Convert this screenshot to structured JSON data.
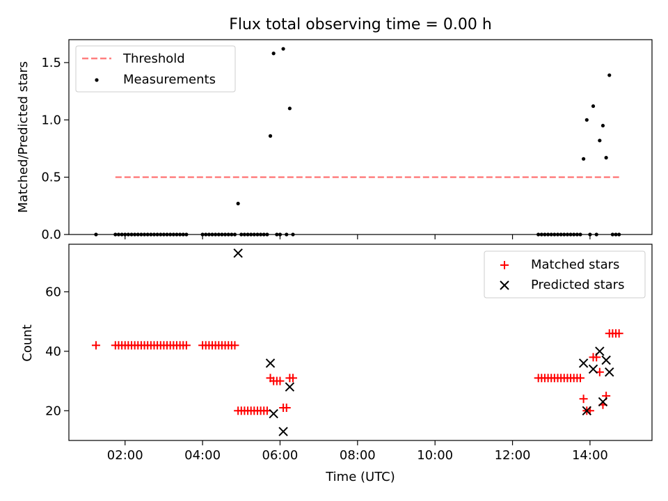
{
  "figure": {
    "title": "Flux total observing time = 0.00 h"
  },
  "chart_data": [
    {
      "type": "scatter",
      "ylabel": "Matched/Predicted stars",
      "xlim": [
        0.55,
        15.6
      ],
      "ylim": [
        0,
        1.7
      ],
      "yticks": [
        0.0,
        0.5,
        1.0,
        1.5
      ],
      "ytick_labels": [
        "0.0",
        "0.5",
        "1.0",
        "1.5"
      ],
      "xticks": [
        2,
        4,
        6,
        8,
        10,
        12,
        14
      ],
      "grid": false,
      "legend_placement": "top-left",
      "threshold": {
        "name": "Threshold",
        "value": 0.5,
        "x_range": [
          1.75,
          14.75
        ],
        "color": "#ff7f7f"
      },
      "series": [
        {
          "name": "Measurements",
          "color": "#000000",
          "x": [
            1.25,
            1.75,
            1.833,
            1.917,
            2.0,
            2.083,
            2.167,
            2.25,
            2.333,
            2.417,
            2.5,
            2.583,
            2.667,
            2.75,
            2.833,
            2.917,
            3.0,
            3.083,
            3.167,
            3.25,
            3.333,
            3.417,
            3.5,
            3.583,
            4.0,
            4.083,
            4.167,
            4.25,
            4.333,
            4.417,
            4.5,
            4.583,
            4.667,
            4.75,
            4.833,
            4.917,
            5.0,
            5.083,
            5.167,
            5.25,
            5.333,
            5.417,
            5.5,
            5.583,
            5.667,
            5.75,
            5.833,
            5.917,
            6.0,
            6.083,
            6.167,
            6.25,
            6.333,
            12.667,
            12.75,
            12.833,
            12.917,
            13.0,
            13.083,
            13.167,
            13.25,
            13.333,
            13.417,
            13.5,
            13.583,
            13.667,
            13.75,
            13.833,
            13.917,
            14.0,
            14.083,
            14.167,
            14.25,
            14.333,
            14.417,
            14.5,
            14.583,
            14.667,
            14.75
          ],
          "y": [
            0,
            0,
            0,
            0,
            0,
            0,
            0,
            0,
            0,
            0,
            0,
            0,
            0,
            0,
            0,
            0,
            0,
            0,
            0,
            0,
            0,
            0,
            0,
            0,
            0,
            0,
            0,
            0,
            0,
            0,
            0,
            0,
            0,
            0,
            0,
            0.27,
            0,
            0,
            0,
            0,
            0,
            0,
            0,
            0,
            0,
            0.86,
            1.58,
            0,
            0,
            1.62,
            0,
            1.1,
            0,
            0,
            0,
            0,
            0,
            0,
            0,
            0,
            0,
            0,
            0,
            0,
            0,
            0,
            0,
            0.66,
            1.0,
            0,
            1.12,
            0,
            0.82,
            0.95,
            0.67,
            1.39,
            0,
            0,
            0
          ]
        }
      ]
    },
    {
      "type": "scatter",
      "xlabel": "Time (UTC)",
      "ylabel": "Count",
      "xlim": [
        0.55,
        15.6
      ],
      "ylim": [
        10,
        76
      ],
      "yticks": [
        20,
        40,
        60
      ],
      "ytick_labels": [
        "20",
        "40",
        "60"
      ],
      "xticks": [
        2,
        4,
        6,
        8,
        10,
        12,
        14
      ],
      "xtick_labels": [
        "02:00",
        "04:00",
        "06:00",
        "08:00",
        "10:00",
        "12:00",
        "14:00"
      ],
      "grid": false,
      "legend_placement": "top-right",
      "series": [
        {
          "name": "Matched stars",
          "marker": "plus",
          "color": "#ff0000",
          "x": [
            1.25,
            1.75,
            1.833,
            1.917,
            2.0,
            2.083,
            2.167,
            2.25,
            2.333,
            2.417,
            2.5,
            2.583,
            2.667,
            2.75,
            2.833,
            2.917,
            3.0,
            3.083,
            3.167,
            3.25,
            3.333,
            3.417,
            3.5,
            3.583,
            4.0,
            4.083,
            4.167,
            4.25,
            4.333,
            4.417,
            4.5,
            4.583,
            4.667,
            4.75,
            4.833,
            4.917,
            5.0,
            5.083,
            5.167,
            5.25,
            5.333,
            5.417,
            5.5,
            5.583,
            5.667,
            5.75,
            5.833,
            5.917,
            6.0,
            6.083,
            6.167,
            6.25,
            6.333,
            12.667,
            12.75,
            12.833,
            12.917,
            13.0,
            13.083,
            13.167,
            13.25,
            13.333,
            13.417,
            13.5,
            13.583,
            13.667,
            13.75,
            13.833,
            13.917,
            14.0,
            14.083,
            14.167,
            14.25,
            14.333,
            14.417,
            14.5,
            14.583,
            14.667,
            14.75
          ],
          "y": [
            42,
            42,
            42,
            42,
            42,
            42,
            42,
            42,
            42,
            42,
            42,
            42,
            42,
            42,
            42,
            42,
            42,
            42,
            42,
            42,
            42,
            42,
            42,
            42,
            42,
            42,
            42,
            42,
            42,
            42,
            42,
            42,
            42,
            42,
            42,
            20,
            20,
            20,
            20,
            20,
            20,
            20,
            20,
            20,
            20,
            31,
            30,
            30,
            30,
            21,
            21,
            31,
            31,
            31,
            31,
            31,
            31,
            31,
            31,
            31,
            31,
            31,
            31,
            31,
            31,
            31,
            31,
            24,
            20,
            20,
            38,
            38,
            33,
            22,
            25,
            46,
            46,
            46,
            46
          ]
        },
        {
          "name": "Predicted stars",
          "marker": "x",
          "color": "#000000",
          "x": [
            4.917,
            5.75,
            5.833,
            6.083,
            6.25,
            13.833,
            13.917,
            14.083,
            14.25,
            14.333,
            14.417,
            14.5
          ],
          "y": [
            73,
            36,
            19,
            13,
            28,
            36,
            20,
            34,
            40,
            23,
            37,
            33
          ]
        }
      ]
    }
  ]
}
